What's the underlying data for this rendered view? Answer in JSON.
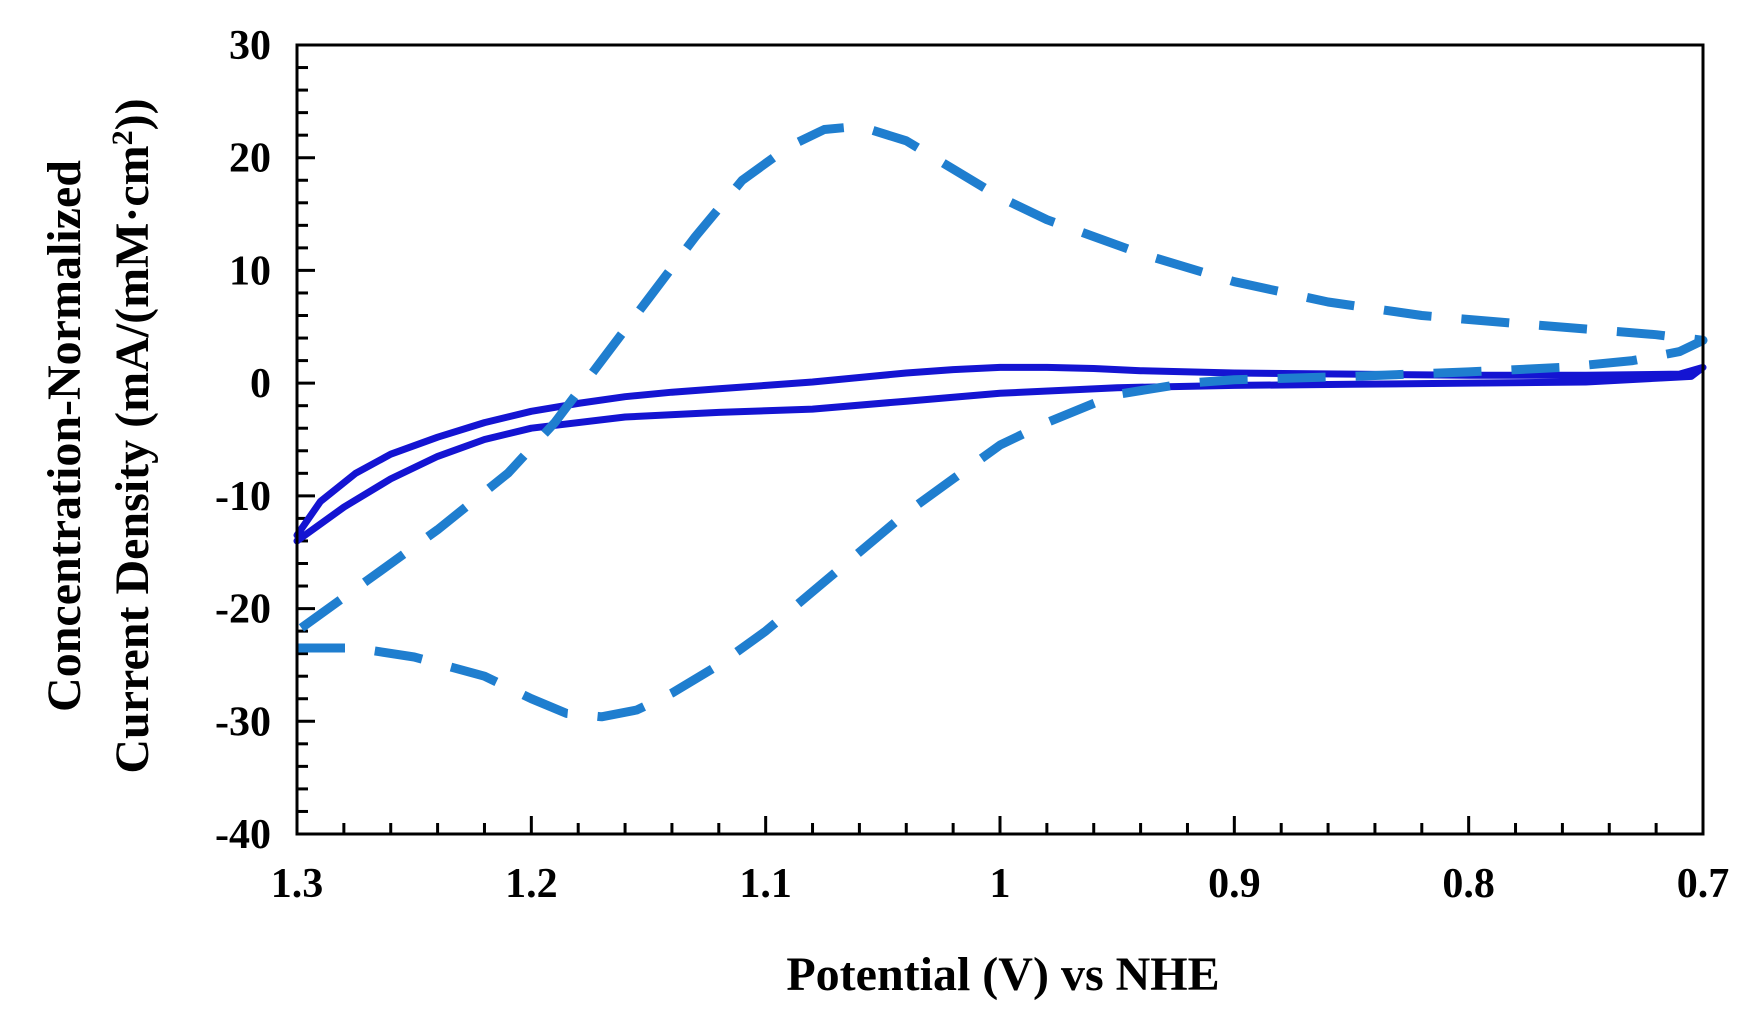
{
  "chart_data": {
    "type": "line",
    "title": "",
    "xlabel": "Potential (V) vs NHE",
    "ylabel_line1": "Concentration-Normalized",
    "ylabel_line2_prefix": "Current Density (mA/(mM·cm",
    "ylabel_line2_sup": "2",
    "ylabel_line2_suffix": "))",
    "xlim": [
      1.3,
      0.7
    ],
    "ylim": [
      -40,
      30
    ],
    "x_reversed": true,
    "x_ticks": [
      1.3,
      1.2,
      1.1,
      1.0,
      0.9,
      0.8,
      0.7
    ],
    "x_tick_labels": [
      "1.3",
      "1.2",
      "1.1",
      "1",
      "0.9",
      "0.8",
      "0.7"
    ],
    "y_ticks": [
      30,
      20,
      10,
      0,
      -10,
      -20,
      -30,
      -40
    ],
    "y_tick_labels": [
      "30",
      "20",
      "10",
      "0",
      "-10",
      "-20",
      "-30",
      "-40"
    ],
    "grid": false,
    "colors": {
      "solid": "#1414d2",
      "dashed": "#1f7ecf",
      "axis": "#000000"
    },
    "series": [
      {
        "name": "solid",
        "style": "solid",
        "points": [
          [
            1.3,
            -13.5
          ],
          [
            1.29,
            -10.5
          ],
          [
            1.275,
            -8.0
          ],
          [
            1.26,
            -6.3
          ],
          [
            1.24,
            -4.8
          ],
          [
            1.22,
            -3.5
          ],
          [
            1.2,
            -2.5
          ],
          [
            1.18,
            -1.8
          ],
          [
            1.16,
            -1.2
          ],
          [
            1.14,
            -0.8
          ],
          [
            1.12,
            -0.5
          ],
          [
            1.1,
            -0.2
          ],
          [
            1.08,
            0.1
          ],
          [
            1.06,
            0.5
          ],
          [
            1.04,
            0.9
          ],
          [
            1.02,
            1.2
          ],
          [
            1.0,
            1.4
          ],
          [
            0.98,
            1.4
          ],
          [
            0.96,
            1.3
          ],
          [
            0.94,
            1.1
          ],
          [
            0.9,
            0.9
          ],
          [
            0.85,
            0.8
          ],
          [
            0.8,
            0.7
          ],
          [
            0.75,
            0.7
          ],
          [
            0.71,
            0.8
          ],
          [
            0.7,
            1.4
          ],
          [
            0.705,
            0.6
          ],
          [
            0.75,
            0.1
          ],
          [
            0.8,
            0.0
          ],
          [
            0.85,
            -0.1
          ],
          [
            0.9,
            -0.2
          ],
          [
            0.95,
            -0.4
          ],
          [
            1.0,
            -0.9
          ],
          [
            1.04,
            -1.6
          ],
          [
            1.08,
            -2.3
          ],
          [
            1.12,
            -2.6
          ],
          [
            1.16,
            -3.0
          ],
          [
            1.2,
            -4.0
          ],
          [
            1.22,
            -5.0
          ],
          [
            1.24,
            -6.5
          ],
          [
            1.26,
            -8.5
          ],
          [
            1.28,
            -11.0
          ],
          [
            1.3,
            -14.0
          ]
        ]
      },
      {
        "name": "dashed",
        "style": "dashed",
        "points": [
          [
            1.3,
            -23.5
          ],
          [
            1.275,
            -23.5
          ],
          [
            1.25,
            -24.3
          ],
          [
            1.22,
            -26.0
          ],
          [
            1.2,
            -28.0
          ],
          [
            1.185,
            -29.3
          ],
          [
            1.17,
            -29.6
          ],
          [
            1.155,
            -29.0
          ],
          [
            1.14,
            -27.5
          ],
          [
            1.12,
            -25.0
          ],
          [
            1.1,
            -22.0
          ],
          [
            1.08,
            -18.5
          ],
          [
            1.06,
            -15.0
          ],
          [
            1.04,
            -11.5
          ],
          [
            1.02,
            -8.5
          ],
          [
            1.0,
            -5.5
          ],
          [
            0.98,
            -3.5
          ],
          [
            0.96,
            -1.8
          ],
          [
            0.95,
            -1.0
          ],
          [
            0.92,
            0.0
          ],
          [
            0.9,
            0.3
          ],
          [
            0.85,
            0.6
          ],
          [
            0.8,
            1.0
          ],
          [
            0.76,
            1.4
          ],
          [
            0.73,
            2.0
          ],
          [
            0.71,
            2.8
          ],
          [
            0.7,
            3.8
          ],
          [
            0.72,
            4.3
          ],
          [
            0.75,
            4.8
          ],
          [
            0.78,
            5.3
          ],
          [
            0.82,
            6.0
          ],
          [
            0.86,
            7.2
          ],
          [
            0.9,
            9.0
          ],
          [
            0.94,
            11.5
          ],
          [
            0.98,
            14.5
          ],
          [
            1.0,
            16.5
          ],
          [
            1.02,
            19.0
          ],
          [
            1.04,
            21.5
          ],
          [
            1.06,
            22.8
          ],
          [
            1.075,
            22.5
          ],
          [
            1.09,
            21.0
          ],
          [
            1.11,
            18.0
          ],
          [
            1.13,
            13.0
          ],
          [
            1.15,
            7.5
          ],
          [
            1.17,
            2.0
          ],
          [
            1.19,
            -3.5
          ],
          [
            1.21,
            -8.0
          ],
          [
            1.24,
            -13.0
          ],
          [
            1.27,
            -17.5
          ],
          [
            1.3,
            -22.0
          ]
        ]
      }
    ]
  }
}
